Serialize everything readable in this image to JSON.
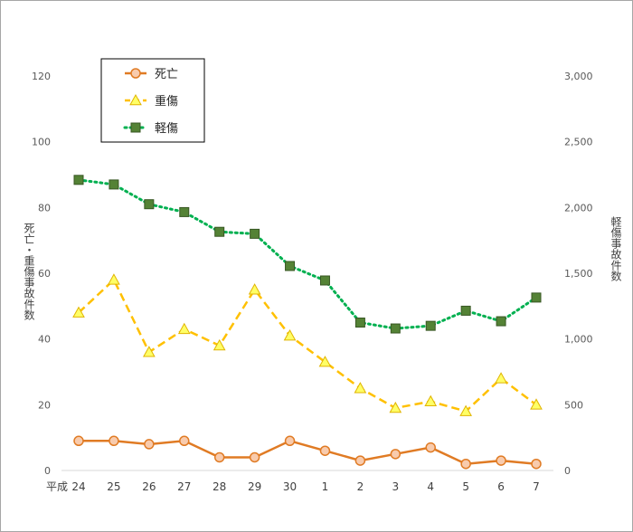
{
  "chart_data": {
    "type": "line",
    "categories": [
      "24",
      "25",
      "26",
      "27",
      "28",
      "29",
      "30",
      "1",
      "2",
      "3",
      "4",
      "5",
      "6",
      "7"
    ],
    "x_prefix": "平成",
    "series": [
      {
        "name": "死亡",
        "axis": "left",
        "color": "#e07b24",
        "style": "solid",
        "marker": "circle",
        "values": [
          9,
          9,
          8,
          9,
          4,
          4,
          9,
          6,
          3,
          5,
          7,
          2,
          3,
          2
        ]
      },
      {
        "name": "重傷",
        "axis": "left",
        "color": "#ffc000",
        "style": "dashed",
        "marker": "triangle",
        "values": [
          48,
          58,
          36,
          43,
          38,
          55,
          41,
          33,
          25,
          19,
          21,
          18,
          28,
          20
        ]
      },
      {
        "name": "軽傷",
        "axis": "right",
        "color": "#00b050",
        "style": "dotted",
        "marker": "square",
        "values": [
          2210,
          2175,
          2025,
          1965,
          1815,
          1800,
          1555,
          1445,
          1125,
          1080,
          1100,
          1215,
          1135,
          1315
        ]
      }
    ],
    "y_left": {
      "label": "死亡・重傷事故件数",
      "ylim": [
        0,
        120
      ],
      "ticks": [
        "0",
        "20",
        "40",
        "60",
        "80",
        "100",
        "120"
      ]
    },
    "y_right": {
      "label": "軽傷事故件数",
      "ylim": [
        0,
        3000
      ],
      "ticks": [
        "0",
        "500",
        "1,000",
        "1,500",
        "2,000",
        "2,500",
        "3,000"
      ]
    },
    "legend_position": "top-left",
    "grid": false
  }
}
